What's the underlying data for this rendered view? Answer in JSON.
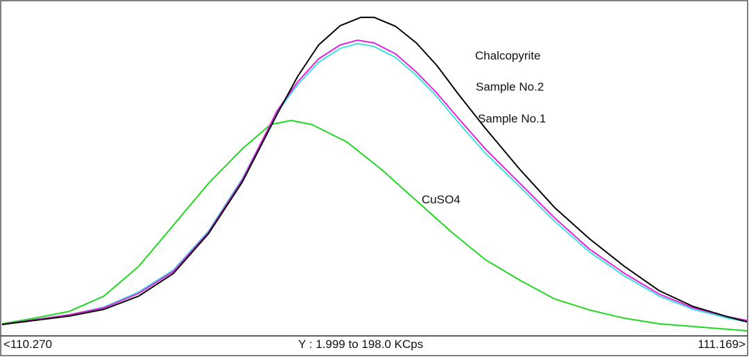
{
  "chart_data": {
    "type": "line",
    "title": "",
    "xlabel": "",
    "ylabel": "",
    "xlim": [
      110.27,
      111.169
    ],
    "ylim": [
      1.999,
      198.0
    ],
    "x_min_label": "<110.270",
    "x_max_label": "111.169>",
    "y_range_label": "Y : 1.999 to 198.0 KCps",
    "grid": false,
    "series": [
      {
        "name": "Chalcopyrite",
        "color": "#000000",
        "x": [
          110.27,
          110.309,
          110.351,
          110.393,
          110.435,
          110.477,
          110.519,
          110.56,
          110.602,
          110.627,
          110.652,
          110.678,
          110.703,
          110.719,
          110.745,
          110.77,
          110.795,
          110.82,
          110.853,
          110.895,
          110.937,
          110.979,
          111.021,
          111.063,
          111.104,
          111.146,
          111.169
        ],
        "y": [
          8.1,
          10.5,
          13.0,
          17.0,
          24.8,
          38.2,
          61.4,
          91.9,
          131.7,
          154.1,
          172.4,
          183.7,
          188.6,
          188.6,
          183.3,
          173.6,
          160.2,
          143.9,
          123.6,
          99.2,
          76.8,
          58.5,
          42.3,
          28.0,
          18.7,
          12.6,
          9.7
        ]
      },
      {
        "name": "Sample No.2",
        "color": "#e020e0",
        "x": [
          110.27,
          110.309,
          110.351,
          110.393,
          110.435,
          110.477,
          110.519,
          110.56,
          110.602,
          110.627,
          110.652,
          110.678,
          110.699,
          110.719,
          110.745,
          110.77,
          110.795,
          110.82,
          110.853,
          110.895,
          110.937,
          110.979,
          111.021,
          111.063,
          111.104,
          111.146,
          111.169
        ],
        "y": [
          8.1,
          10.9,
          13.8,
          17.9,
          26.4,
          39.4,
          62.2,
          93.1,
          133.7,
          150.8,
          164.2,
          172.4,
          175.2,
          173.6,
          167.1,
          156.5,
          143.9,
          129.7,
          111.4,
          91.0,
          70.7,
          52.4,
          38.2,
          26.0,
          17.9,
          12.6,
          10.5
        ]
      },
      {
        "name": "Sample No.1",
        "color": "#40e0e0",
        "x": [
          110.27,
          110.309,
          110.351,
          110.393,
          110.435,
          110.477,
          110.519,
          110.56,
          110.602,
          110.627,
          110.652,
          110.678,
          110.699,
          110.719,
          110.745,
          110.77,
          110.795,
          110.82,
          110.853,
          110.895,
          110.937,
          110.979,
          111.021,
          111.063,
          111.104,
          111.146,
          111.169
        ],
        "y": [
          8.1,
          10.9,
          13.8,
          18.3,
          27.2,
          40.2,
          63.0,
          93.9,
          132.9,
          149.2,
          162.2,
          170.3,
          173.2,
          171.5,
          165.0,
          154.5,
          141.9,
          127.2,
          108.9,
          89.0,
          68.7,
          50.8,
          36.6,
          24.8,
          17.0,
          11.8,
          9.7
        ]
      },
      {
        "name": "CuSO4",
        "color": "#20d820",
        "x": [
          110.27,
          110.309,
          110.351,
          110.393,
          110.435,
          110.477,
          110.519,
          110.56,
          110.594,
          110.619,
          110.644,
          110.686,
          110.728,
          110.77,
          110.812,
          110.853,
          110.895,
          110.937,
          110.979,
          111.021,
          111.063,
          111.104,
          111.169
        ],
        "y": [
          8.5,
          11.8,
          15.8,
          24.8,
          42.3,
          66.6,
          91.0,
          111.4,
          125.6,
          128.0,
          125.6,
          115.4,
          99.2,
          80.9,
          62.6,
          46.3,
          34.1,
          23.1,
          16.6,
          11.8,
          8.5,
          6.9,
          4.4
        ]
      }
    ]
  }
}
